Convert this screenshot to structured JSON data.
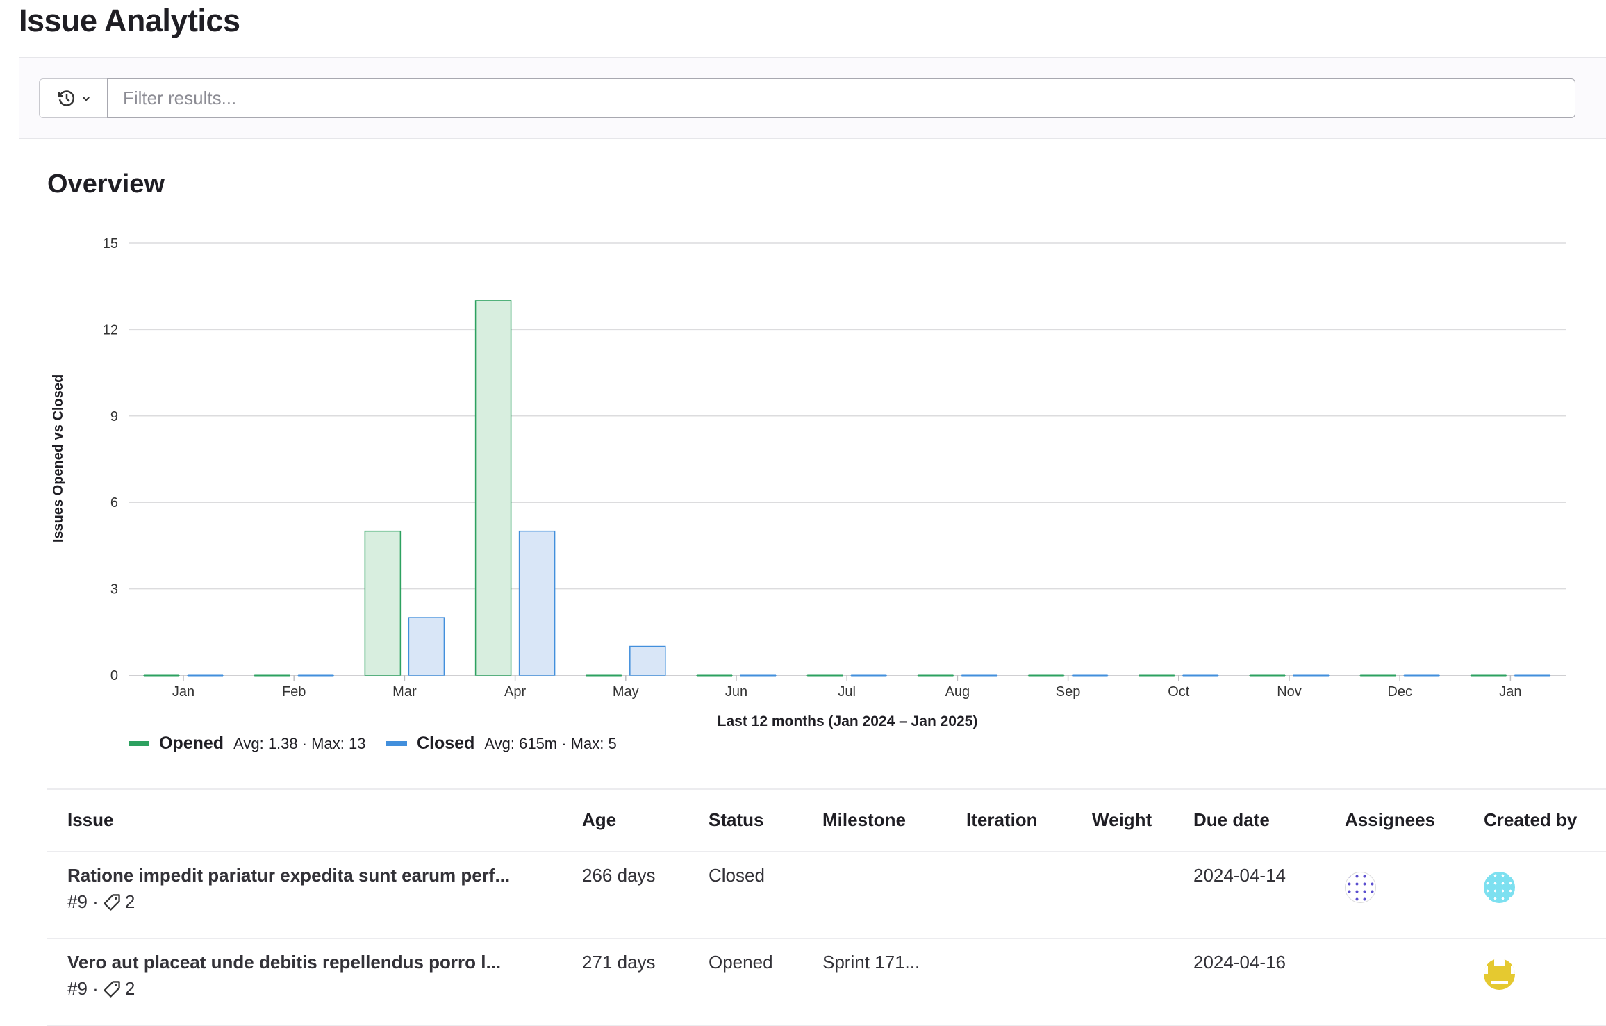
{
  "page": {
    "title": "Issue Analytics"
  },
  "filter": {
    "history_icon": "history-icon",
    "placeholder": "Filter results..."
  },
  "overview": {
    "title": "Overview"
  },
  "chart_data": {
    "type": "bar",
    "categories": [
      "Jan",
      "Feb",
      "Mar",
      "Apr",
      "May",
      "Jun",
      "Jul",
      "Aug",
      "Sep",
      "Oct",
      "Nov",
      "Dec",
      "Jan"
    ],
    "series": [
      {
        "name": "Opened",
        "values": [
          0,
          0,
          5,
          13,
          0,
          0,
          0,
          0,
          0,
          0,
          0,
          0,
          0
        ],
        "color": "#2da160",
        "fill": "#d8eedf",
        "stats": "Avg: 1.38 · Max: 13"
      },
      {
        "name": "Closed",
        "values": [
          0,
          0,
          2,
          5,
          1,
          0,
          0,
          0,
          0,
          0,
          0,
          0,
          0
        ],
        "color": "#428fdc",
        "fill": "#d9e6f7",
        "stats": "Avg: 615m · Max: 5"
      }
    ],
    "xlabel": "Last 12 months (Jan 2024 – Jan 2025)",
    "ylabel": "Issues Opened vs Closed",
    "ylim": [
      0,
      15
    ],
    "yticks": [
      0,
      3,
      6,
      9,
      12,
      15
    ],
    "grid": true,
    "legend": "bottom-left"
  },
  "table": {
    "headers": [
      "Issue",
      "Age",
      "Status",
      "Milestone",
      "Iteration",
      "Weight",
      "Due date",
      "Assignees",
      "Created by"
    ],
    "rows": [
      {
        "title": "Ratione impedit pariatur expedita sunt earum perf...",
        "ref": "#9 ·",
        "labels": "2",
        "age": "266 days",
        "status": "Closed",
        "milestone": "",
        "iteration": "",
        "weight": "",
        "due": "2024-04-14",
        "assignee_color": "#5b4fcf",
        "creator_color": "#7de0f0"
      },
      {
        "title": "Vero aut placeat unde debitis repellendus porro l...",
        "ref": "#9 ·",
        "labels": "2",
        "age": "271 days",
        "status": "Opened",
        "milestone": "Sprint 171...",
        "iteration": "",
        "weight": "",
        "due": "2024-04-16",
        "assignee_color": "",
        "creator_color": "#e5c930"
      }
    ]
  }
}
